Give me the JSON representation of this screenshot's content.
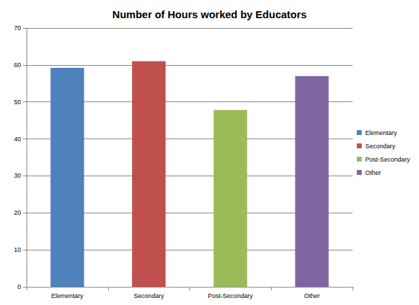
{
  "chart_data": {
    "type": "bar",
    "title": "Number of Hours worked by Educators",
    "categories": [
      "Elementary",
      "Secondary",
      "Post-Secondary",
      "Other"
    ],
    "values": [
      59.2,
      61,
      47.8,
      57
    ],
    "colors": [
      "#4f81bd",
      "#c0504d",
      "#9bbb59",
      "#8064a2"
    ],
    "ylim": [
      0,
      70
    ],
    "yticks": [
      0,
      10,
      20,
      30,
      40,
      50,
      60,
      70
    ],
    "grid": true,
    "legend": "right"
  }
}
